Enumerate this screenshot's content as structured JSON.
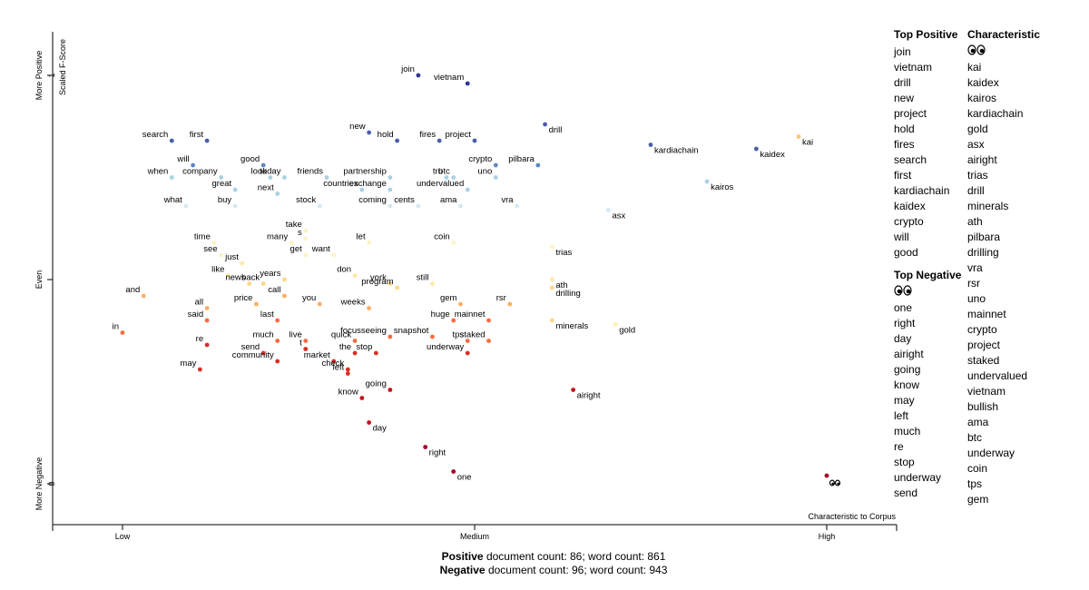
{
  "chart_data": {
    "type": "scatter",
    "title": "",
    "xlabel": "Characteristic to Corpus",
    "ylabel": "Scaled F-Score",
    "x_ticks": [
      "Low",
      "Medium",
      "High"
    ],
    "y_ticks": [
      "More Negative",
      "Even",
      "More Positive"
    ],
    "y_tick_values": [
      "0",
      "",
      "1"
    ],
    "xlim": [
      0,
      1
    ],
    "ylim": [
      0,
      1
    ],
    "points": [
      {
        "term": "join",
        "x": 0.42,
        "y": 1.0,
        "color": "#313695"
      },
      {
        "term": "vietnam",
        "x": 0.49,
        "y": 0.98,
        "color": "#313695"
      },
      {
        "term": "drill",
        "x": 0.6,
        "y": 0.88,
        "color": "#4a5fa8"
      },
      {
        "term": "new",
        "x": 0.35,
        "y": 0.86,
        "color": "#4a5fa8"
      },
      {
        "term": "hold",
        "x": 0.39,
        "y": 0.84,
        "color": "#4a5fa8"
      },
      {
        "term": "fires",
        "x": 0.45,
        "y": 0.84,
        "color": "#4a5fa8"
      },
      {
        "term": "project",
        "x": 0.5,
        "y": 0.84,
        "color": "#4a5fa8"
      },
      {
        "term": "search",
        "x": 0.07,
        "y": 0.84,
        "color": "#4a5fa8"
      },
      {
        "term": "first",
        "x": 0.12,
        "y": 0.84,
        "color": "#4a5fa8"
      },
      {
        "term": "kardiachain",
        "x": 0.75,
        "y": 0.83,
        "color": "#4a5fa8"
      },
      {
        "term": "kai",
        "x": 0.96,
        "y": 0.85,
        "color": "#fdc877"
      },
      {
        "term": "kaidex",
        "x": 0.9,
        "y": 0.82,
        "color": "#4a5fa8"
      },
      {
        "term": "will",
        "x": 0.1,
        "y": 0.78,
        "color": "#5c88c0"
      },
      {
        "term": "good",
        "x": 0.2,
        "y": 0.78,
        "color": "#5c88c0"
      },
      {
        "term": "crypto",
        "x": 0.53,
        "y": 0.78,
        "color": "#5c88c0"
      },
      {
        "term": "pilbara",
        "x": 0.59,
        "y": 0.78,
        "color": "#5c88c0"
      },
      {
        "term": "kairos",
        "x": 0.83,
        "y": 0.74,
        "color": "#abd0e6"
      },
      {
        "term": "when",
        "x": 0.07,
        "y": 0.75,
        "color": "#abd0e6"
      },
      {
        "term": "company",
        "x": 0.14,
        "y": 0.75,
        "color": "#abd0e6"
      },
      {
        "term": "today",
        "x": 0.23,
        "y": 0.75,
        "color": "#abd0e6"
      },
      {
        "term": "look",
        "x": 0.21,
        "y": 0.75,
        "color": "#abd0e6"
      },
      {
        "term": "friends",
        "x": 0.29,
        "y": 0.75,
        "color": "#abd0e6"
      },
      {
        "term": "partnership",
        "x": 0.38,
        "y": 0.75,
        "color": "#abd0e6"
      },
      {
        "term": "btc",
        "x": 0.47,
        "y": 0.75,
        "color": "#abd0e6"
      },
      {
        "term": "tru",
        "x": 0.46,
        "y": 0.75,
        "color": "#abd0e6"
      },
      {
        "term": "uno",
        "x": 0.53,
        "y": 0.75,
        "color": "#abd0e6"
      },
      {
        "term": "great",
        "x": 0.16,
        "y": 0.72,
        "color": "#abd0e6"
      },
      {
        "term": "next",
        "x": 0.22,
        "y": 0.71,
        "color": "#abd0e6"
      },
      {
        "term": "countries",
        "x": 0.34,
        "y": 0.72,
        "color": "#abd0e6"
      },
      {
        "term": "exchange",
        "x": 0.38,
        "y": 0.72,
        "color": "#abd0e6"
      },
      {
        "term": "undervalued",
        "x": 0.49,
        "y": 0.72,
        "color": "#abd0e6"
      },
      {
        "term": "what",
        "x": 0.09,
        "y": 0.68,
        "color": "#d4e8f2"
      },
      {
        "term": "buy",
        "x": 0.16,
        "y": 0.68,
        "color": "#d4e8f2"
      },
      {
        "term": "stock",
        "x": 0.28,
        "y": 0.68,
        "color": "#d4e8f2"
      },
      {
        "term": "coming",
        "x": 0.38,
        "y": 0.68,
        "color": "#d4e8f2"
      },
      {
        "term": "cents",
        "x": 0.42,
        "y": 0.68,
        "color": "#d4e8f2"
      },
      {
        "term": "ama",
        "x": 0.48,
        "y": 0.68,
        "color": "#d4e8f2"
      },
      {
        "term": "vra",
        "x": 0.56,
        "y": 0.68,
        "color": "#d4e8f2"
      },
      {
        "term": "asx",
        "x": 0.69,
        "y": 0.67,
        "color": "#d4e8f2"
      },
      {
        "term": "take",
        "x": 0.26,
        "y": 0.62,
        "color": "#f7f3cc"
      },
      {
        "term": "s",
        "x": 0.26,
        "y": 0.6,
        "color": "#f7f3cc"
      },
      {
        "term": "time",
        "x": 0.13,
        "y": 0.59,
        "color": "#fbf4c4"
      },
      {
        "term": "many",
        "x": 0.24,
        "y": 0.59,
        "color": "#fbf4c4"
      },
      {
        "term": "let",
        "x": 0.35,
        "y": 0.59,
        "color": "#fbf4c4"
      },
      {
        "term": "coin",
        "x": 0.47,
        "y": 0.59,
        "color": "#fbf4c4"
      },
      {
        "term": "get",
        "x": 0.26,
        "y": 0.56,
        "color": "#fbf4c4"
      },
      {
        "term": "want",
        "x": 0.3,
        "y": 0.56,
        "color": "#fbf4c4"
      },
      {
        "term": "trias",
        "x": 0.61,
        "y": 0.58,
        "color": "#fbf4c4"
      },
      {
        "term": "see",
        "x": 0.14,
        "y": 0.56,
        "color": "#fbf4c4"
      },
      {
        "term": "just",
        "x": 0.17,
        "y": 0.54,
        "color": "#fee9a6"
      },
      {
        "term": "like",
        "x": 0.15,
        "y": 0.51,
        "color": "#fee9a6"
      },
      {
        "term": "don",
        "x": 0.33,
        "y": 0.51,
        "color": "#fee9a6"
      },
      {
        "term": "still",
        "x": 0.44,
        "y": 0.49,
        "color": "#fee9a6"
      },
      {
        "term": "ath",
        "x": 0.61,
        "y": 0.5,
        "color": "#fee9a6"
      },
      {
        "term": "news",
        "x": 0.18,
        "y": 0.49,
        "color": "#fdd78a"
      },
      {
        "term": "back",
        "x": 0.2,
        "y": 0.49,
        "color": "#fdd78a"
      },
      {
        "term": "years",
        "x": 0.23,
        "y": 0.5,
        "color": "#fdd78a"
      },
      {
        "term": "york",
        "x": 0.38,
        "y": 0.49,
        "color": "#fdd78a"
      },
      {
        "term": "program",
        "x": 0.39,
        "y": 0.48,
        "color": "#fdd78a"
      },
      {
        "term": "drilling",
        "x": 0.61,
        "y": 0.48,
        "color": "#fdd78a"
      },
      {
        "term": "and",
        "x": 0.03,
        "y": 0.46,
        "color": "#fdae61"
      },
      {
        "term": "all",
        "x": 0.12,
        "y": 0.43,
        "color": "#fdae61"
      },
      {
        "term": "price",
        "x": 0.19,
        "y": 0.44,
        "color": "#fdae61"
      },
      {
        "term": "call",
        "x": 0.23,
        "y": 0.46,
        "color": "#fdae61"
      },
      {
        "term": "you",
        "x": 0.28,
        "y": 0.44,
        "color": "#fdae61"
      },
      {
        "term": "weeks",
        "x": 0.35,
        "y": 0.43,
        "color": "#fdae61"
      },
      {
        "term": "gem",
        "x": 0.48,
        "y": 0.44,
        "color": "#fdae61"
      },
      {
        "term": "rsr",
        "x": 0.55,
        "y": 0.44,
        "color": "#fdae61"
      },
      {
        "term": "said",
        "x": 0.12,
        "y": 0.4,
        "color": "#f46d43"
      },
      {
        "term": "last",
        "x": 0.22,
        "y": 0.4,
        "color": "#f46d43"
      },
      {
        "term": "huge",
        "x": 0.47,
        "y": 0.4,
        "color": "#f46d43"
      },
      {
        "term": "mainnet",
        "x": 0.52,
        "y": 0.4,
        "color": "#f46d43"
      },
      {
        "term": "minerals",
        "x": 0.61,
        "y": 0.4,
        "color": "#fdd78a"
      },
      {
        "term": "gold",
        "x": 0.7,
        "y": 0.39,
        "color": "#fef0b0"
      },
      {
        "term": "in",
        "x": 0.0,
        "y": 0.37,
        "color": "#f46d43"
      },
      {
        "term": "much",
        "x": 0.22,
        "y": 0.35,
        "color": "#f46d43"
      },
      {
        "term": "live",
        "x": 0.26,
        "y": 0.35,
        "color": "#f46d43"
      },
      {
        "term": "quick",
        "x": 0.33,
        "y": 0.35,
        "color": "#f46d43"
      },
      {
        "term": "focusseeing",
        "x": 0.38,
        "y": 0.36,
        "color": "#f46d43"
      },
      {
        "term": "snapshot",
        "x": 0.44,
        "y": 0.36,
        "color": "#f46d43"
      },
      {
        "term": "tps",
        "x": 0.49,
        "y": 0.35,
        "color": "#f46d43"
      },
      {
        "term": "staked",
        "x": 0.52,
        "y": 0.35,
        "color": "#f46d43"
      },
      {
        "term": "re",
        "x": 0.12,
        "y": 0.34,
        "color": "#d73027"
      },
      {
        "term": "send",
        "x": 0.2,
        "y": 0.32,
        "color": "#d73027"
      },
      {
        "term": "t",
        "x": 0.26,
        "y": 0.33,
        "color": "#d73027"
      },
      {
        "term": "the",
        "x": 0.33,
        "y": 0.32,
        "color": "#d73027"
      },
      {
        "term": "community",
        "x": 0.22,
        "y": 0.3,
        "color": "#d73027"
      },
      {
        "term": "market",
        "x": 0.3,
        "y": 0.3,
        "color": "#d73027"
      },
      {
        "term": "stop",
        "x": 0.36,
        "y": 0.32,
        "color": "#d73027"
      },
      {
        "term": "underway",
        "x": 0.49,
        "y": 0.32,
        "color": "#d73027"
      },
      {
        "term": "may",
        "x": 0.11,
        "y": 0.28,
        "color": "#d73027"
      },
      {
        "term": "check",
        "x": 0.32,
        "y": 0.28,
        "color": "#d73027"
      },
      {
        "term": "left",
        "x": 0.32,
        "y": 0.27,
        "color": "#d73027"
      },
      {
        "term": "going",
        "x": 0.38,
        "y": 0.23,
        "color": "#c4141d"
      },
      {
        "term": "know",
        "x": 0.34,
        "y": 0.21,
        "color": "#c4141d"
      },
      {
        "term": "airight",
        "x": 0.64,
        "y": 0.23,
        "color": "#c4141d"
      },
      {
        "term": "day",
        "x": 0.35,
        "y": 0.15,
        "color": "#c4141d"
      },
      {
        "term": "right",
        "x": 0.43,
        "y": 0.09,
        "color": "#a50026"
      },
      {
        "term": "one",
        "x": 0.47,
        "y": 0.03,
        "color": "#a50026"
      },
      {
        "term": "eyes-emoji",
        "x": 1.0,
        "y": 0.02,
        "color": "#a50026"
      }
    ]
  },
  "sidebar": {
    "top_positive_title": "Top Positive",
    "top_positive": [
      "join",
      "vietnam",
      "drill",
      "new",
      "project",
      "hold",
      "fires",
      "search",
      "first",
      "kardiachain",
      "kaidex",
      "crypto",
      "will",
      "good"
    ],
    "top_negative_title": "Top Negative",
    "top_negative": [
      "eyes-emoji",
      "one",
      "right",
      "day",
      "airight",
      "going",
      "know",
      "may",
      "left",
      "much",
      "re",
      "stop",
      "underway",
      "send"
    ],
    "characteristic_title": "Characteristic",
    "characteristic": [
      "eyes-emoji",
      "kai",
      "kaidex",
      "kairos",
      "kardiachain",
      "gold",
      "asx",
      "airight",
      "trias",
      "drill",
      "minerals",
      "ath",
      "pilbara",
      "drilling",
      "vra",
      "rsr",
      "uno",
      "mainnet",
      "crypto",
      "project",
      "staked",
      "undervalued",
      "vietnam",
      "bullish",
      "ama",
      "btc",
      "underway",
      "coin",
      "tps",
      "gem"
    ]
  },
  "footer": {
    "positive_label": "Positive",
    "positive_text": " document count: 86; word count: 861",
    "negative_label": "Negative",
    "negative_text": " document count: 96; word count: 943"
  }
}
